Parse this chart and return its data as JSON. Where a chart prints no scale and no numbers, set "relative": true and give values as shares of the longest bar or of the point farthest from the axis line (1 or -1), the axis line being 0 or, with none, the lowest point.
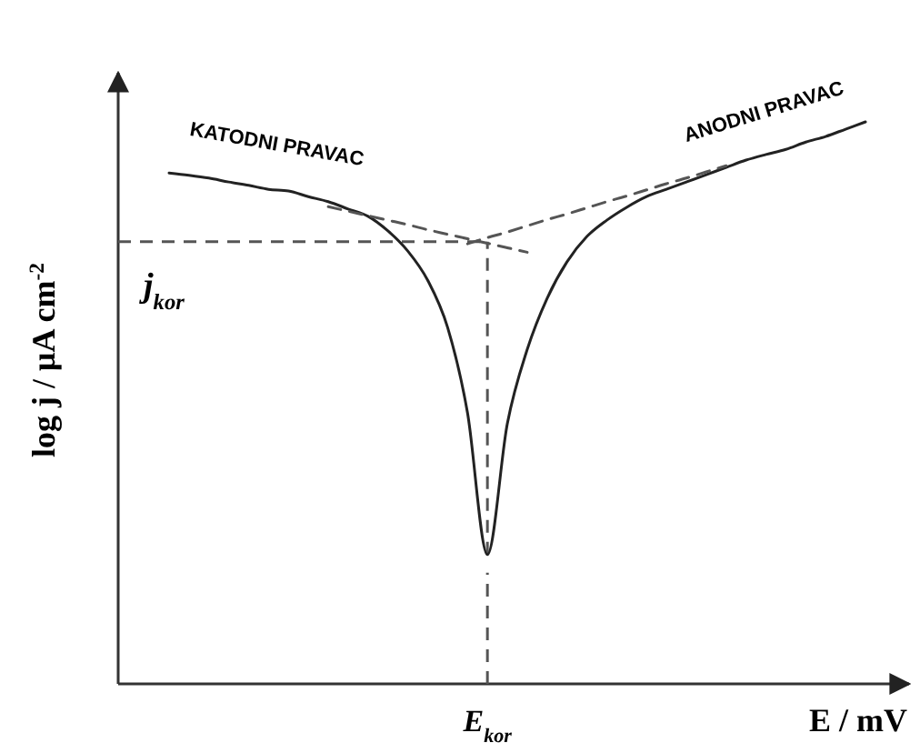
{
  "chart_data": {
    "type": "line",
    "relative": true,
    "xlabel": "E / mV",
    "ylabel": "log j / μA cm$^{-2}$",
    "categories": [
      null,
      null,
      null,
      null,
      null,
      null,
      null,
      null,
      null,
      null,
      null,
      null,
      null,
      null,
      null,
      null,
      null,
      null,
      null,
      null,
      null,
      null,
      null,
      null,
      null,
      null,
      null,
      null,
      null,
      null,
      null,
      null,
      null,
      null,
      null,
      null
    ],
    "series": [
      {
        "color": "#222222",
        "line_style": "solid",
        "values": [
          0.909,
          0.905,
          0.9,
          0.893,
          0.887,
          0.88,
          0.877,
          0.867,
          0.858,
          0.845,
          0.832,
          0.806,
          0.77,
          0.718,
          0.634,
          0.482,
          0.23,
          0.463,
          0.595,
          0.686,
          0.751,
          0.796,
          0.825,
          0.848,
          0.867,
          0.88,
          0.893,
          0.906,
          0.919,
          0.932,
          0.942,
          0.951,
          0.964,
          0.974,
          0.987,
          1
        ]
      },
      {
        "color": "#555555",
        "line_style": "dashed",
        "values": [
          null,
          null,
          null,
          null,
          null,
          null,
          null,
          null,
          0.849,
          0.841,
          0.833,
          0.825,
          0.817,
          0.808,
          0.8,
          0.792,
          0.784,
          0.776,
          0.768,
          null,
          null,
          null,
          null,
          null,
          null,
          null,
          null,
          null,
          null,
          null,
          null,
          null,
          null,
          null,
          null,
          null
        ]
      },
      {
        "color": "#555555",
        "line_style": "dashed",
        "values": [
          null,
          null,
          null,
          null,
          null,
          null,
          null,
          null,
          null,
          null,
          null,
          null,
          null,
          null,
          null,
          0.783,
          0.794,
          0.804,
          0.815,
          0.826,
          0.836,
          0.847,
          0.858,
          0.868,
          0.879,
          0.89,
          0.9,
          0.911,
          0.922,
          null,
          null,
          null,
          null,
          null,
          null,
          null
        ]
      }
    ],
    "ref_lines": [
      {
        "axis": "y",
        "value": 0.787,
        "label": "j$_{kor}$",
        "color": "#555555",
        "line_style": "dashed"
      }
    ],
    "annotations": [
      "KATODNI PRAVAC",
      "ANODNI PRAVAC",
      "E$_{kor}$"
    ]
  }
}
